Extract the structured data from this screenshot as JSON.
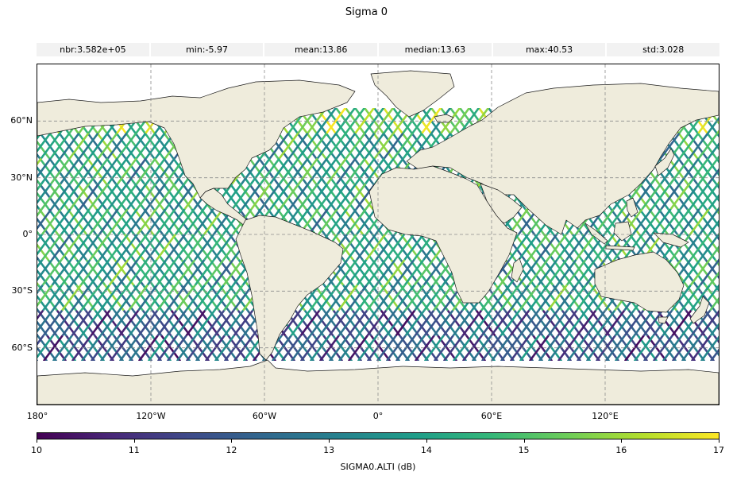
{
  "title": "Sigma 0",
  "stats": [
    {
      "label": "nbr:",
      "value": "3.582e+05"
    },
    {
      "label": "min:",
      "value": "-5.97"
    },
    {
      "label": "mean:",
      "value": "13.86"
    },
    {
      "label": "median:",
      "value": "13.63"
    },
    {
      "label": "max:",
      "value": "40.53"
    },
    {
      "label": "std:",
      "value": "3.028"
    }
  ],
  "map": {
    "projection": "PlateCarree",
    "extent": {
      "lon": [
        -180,
        180
      ],
      "lat": [
        -90,
        90
      ]
    },
    "gridlines": "dashed",
    "land_color": "#efecdc",
    "lat_ticks": [
      {
        "value": 60,
        "label": "60°N"
      },
      {
        "value": 30,
        "label": "30°N"
      },
      {
        "value": 0,
        "label": "0°"
      },
      {
        "value": -30,
        "label": "30°S"
      },
      {
        "value": -60,
        "label": "60°S"
      }
    ],
    "lon_ticks": [
      {
        "value": -180,
        "label": "180°"
      },
      {
        "value": -120,
        "label": "120°W"
      },
      {
        "value": -60,
        "label": "60°W"
      },
      {
        "value": 0,
        "label": "0°"
      },
      {
        "value": 60,
        "label": "60°E"
      },
      {
        "value": 120,
        "label": "120°E"
      }
    ],
    "data_coverage_lat": [
      -67,
      67
    ]
  },
  "colorbar": {
    "colormap": "viridis",
    "range": [
      10,
      17
    ],
    "ticks": [
      "10",
      "11",
      "12",
      "13",
      "14",
      "15",
      "16",
      "17"
    ],
    "label": "SIGMA0.ALTI (dB)"
  }
}
